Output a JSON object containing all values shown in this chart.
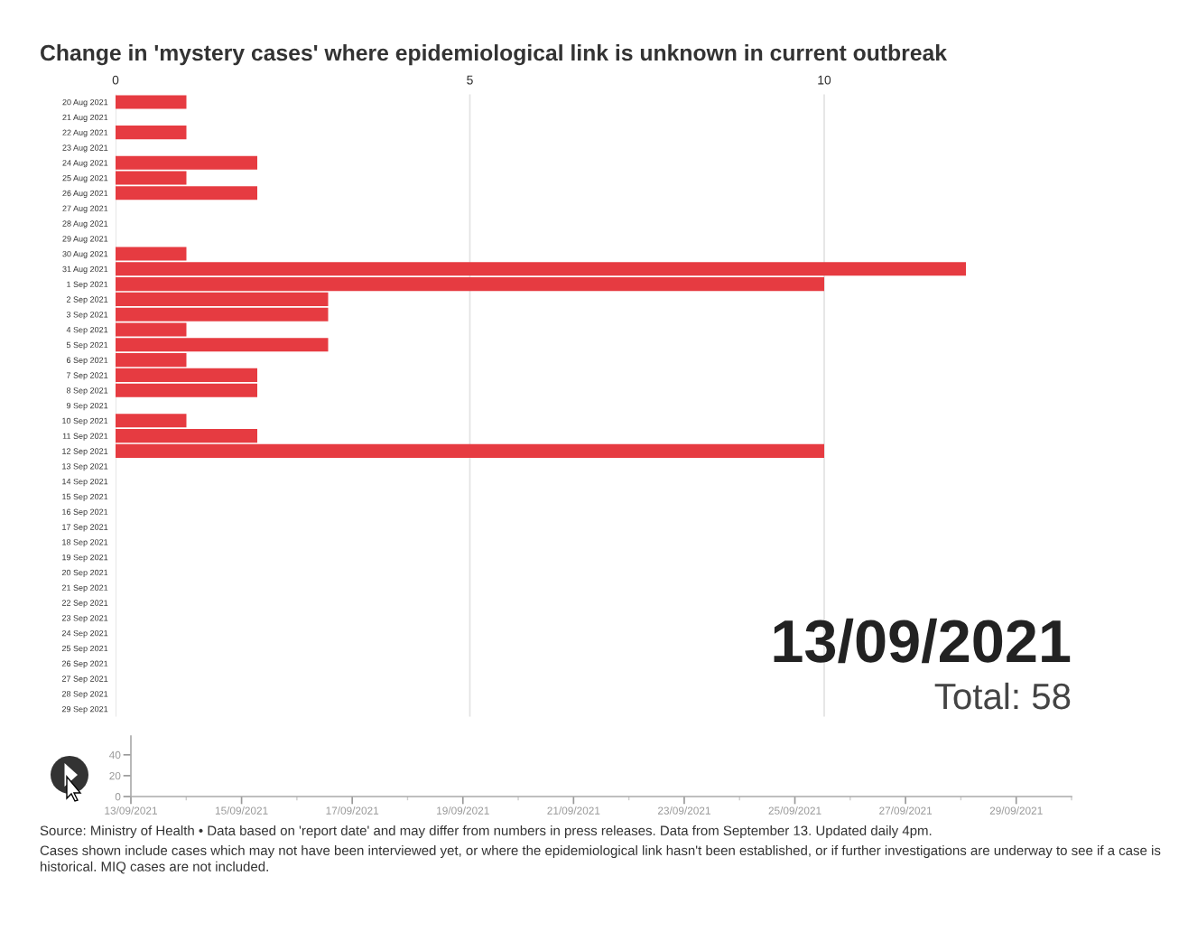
{
  "chart_data": [
    {
      "type": "bar",
      "orientation": "horizontal",
      "title": "Change in 'mystery cases' where epidemiological link is unknown in current outbreak",
      "categories": [
        "20 Aug 2021",
        "21 Aug 2021",
        "22 Aug 2021",
        "23 Aug 2021",
        "24 Aug 2021",
        "25 Aug 2021",
        "26 Aug 2021",
        "27 Aug 2021",
        "28 Aug 2021",
        "29 Aug 2021",
        "30 Aug 2021",
        "31 Aug 2021",
        "1 Sep 2021",
        "2 Sep 2021",
        "3 Sep 2021",
        "4 Sep 2021",
        "5 Sep 2021",
        "6 Sep 2021",
        "7 Sep 2021",
        "8 Sep 2021",
        "9 Sep 2021",
        "10 Sep 2021",
        "11 Sep 2021",
        "12 Sep 2021",
        "13 Sep 2021",
        "14 Sep 2021",
        "15 Sep 2021",
        "16 Sep 2021",
        "17 Sep 2021",
        "18 Sep 2021",
        "19 Sep 2021",
        "20 Sep 2021",
        "21 Sep 2021",
        "22 Sep 2021",
        "23 Sep 2021",
        "24 Sep 2021",
        "25 Sep 2021",
        "26 Sep 2021",
        "27 Sep 2021",
        "28 Sep 2021",
        "29 Sep 2021"
      ],
      "values": [
        1,
        0,
        1,
        0,
        2,
        1,
        2,
        0,
        0,
        0,
        1,
        12,
        10,
        3,
        3,
        1,
        3,
        1,
        2,
        2,
        0,
        1,
        2,
        10,
        0,
        0,
        0,
        0,
        0,
        0,
        0,
        0,
        0,
        0,
        0,
        0,
        0,
        0,
        0,
        0,
        0
      ],
      "color": "#e63b41",
      "xlim": [
        0,
        12
      ],
      "xticks": [
        0,
        5,
        10
      ],
      "grid": "x",
      "annotations": [
        "13/09/2021",
        "Total: 58",
        "Source: Ministry of Health • Data based on 'report date' and may differ from numbers in press releases. Data from September 13. Updated daily 4pm.",
        "Cases shown include cases which may not have been interviewed yet, or where the epidemiological link hasn't been established, or if further investigations are underway to see if a case is historical. MIQ cases are not included."
      ]
    },
    {
      "type": "line",
      "xlim": [
        "2021-09-13",
        "2021-09-30"
      ],
      "xticks": [
        {
          "value": "2021-09-13",
          "label": "13/09/2021"
        },
        {
          "value": "2021-09-14",
          "label": null
        },
        {
          "value": "2021-09-15",
          "label": "15/09/2021"
        },
        {
          "value": "2021-09-16",
          "label": null
        },
        {
          "value": "2021-09-17",
          "label": "17/09/2021"
        },
        {
          "value": "2021-09-18",
          "label": null
        },
        {
          "value": "2021-09-19",
          "label": "19/09/2021"
        },
        {
          "value": "2021-09-20",
          "label": null
        },
        {
          "value": "2021-09-21",
          "label": "21/09/2021"
        },
        {
          "value": "2021-09-22",
          "label": null
        },
        {
          "value": "2021-09-23",
          "label": "23/09/2021"
        },
        {
          "value": "2021-09-24",
          "label": null
        },
        {
          "value": "2021-09-25",
          "label": "25/09/2021"
        },
        {
          "value": "2021-09-26",
          "label": null
        },
        {
          "value": "2021-09-27",
          "label": "27/09/2021"
        },
        {
          "value": "2021-09-28",
          "label": null
        },
        {
          "value": "2021-09-29",
          "label": "29/09/2021"
        },
        {
          "value": "2021-09-30",
          "label": null
        }
      ],
      "ylim": [
        0,
        58
      ],
      "yticks": [
        0,
        20,
        40
      ]
    }
  ]
}
